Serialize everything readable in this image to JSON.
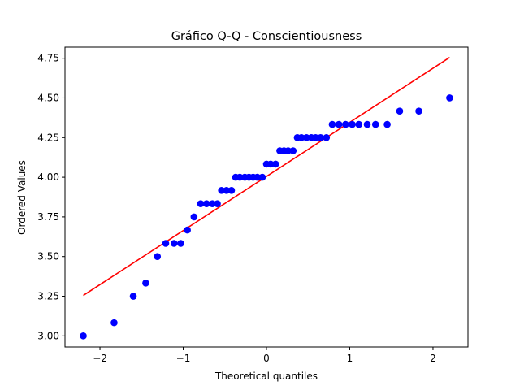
{
  "chart_data": {
    "type": "scatter",
    "title": "Gráfico Q-Q - Conscientiousness",
    "xlabel": "Theoretical quantiles",
    "ylabel": "Ordered Values",
    "xlim": [
      -2.42,
      2.42
    ],
    "ylim": [
      2.93,
      4.82
    ],
    "xticks": [
      -2,
      -1,
      0,
      1,
      2
    ],
    "xtick_labels": [
      "−2",
      "−1",
      "0",
      "1",
      "2"
    ],
    "yticks": [
      3.0,
      3.25,
      3.5,
      3.75,
      4.0,
      4.25,
      4.5,
      4.75
    ],
    "ytick_labels": [
      "3.00",
      "3.25",
      "3.50",
      "3.75",
      "4.00",
      "4.25",
      "4.50",
      "4.75"
    ],
    "grid": false,
    "series": [
      {
        "kind": "points",
        "color": "#0000ff",
        "x": [
          -2.2,
          -1.83,
          -1.6,
          -1.45,
          -1.31,
          -1.21,
          -1.11,
          -1.03,
          -0.95,
          -0.87,
          -0.79,
          -0.72,
          -0.65,
          -0.59,
          -0.54,
          -0.48,
          -0.42,
          -0.37,
          -0.32,
          -0.26,
          -0.21,
          -0.16,
          -0.11,
          -0.05,
          0.0,
          0.05,
          0.11,
          0.16,
          0.21,
          0.26,
          0.32,
          0.37,
          0.42,
          0.48,
          0.54,
          0.59,
          0.65,
          0.72,
          0.79,
          0.87,
          0.95,
          1.03,
          1.11,
          1.21,
          1.31,
          1.45,
          1.6,
          1.83,
          2.2
        ],
        "y": [
          3.0,
          3.083,
          3.25,
          3.333,
          3.5,
          3.583,
          3.583,
          3.583,
          3.667,
          3.75,
          3.833,
          3.833,
          3.833,
          3.833,
          3.917,
          3.917,
          3.917,
          4.0,
          4.0,
          4.0,
          4.0,
          4.0,
          4.0,
          4.0,
          4.083,
          4.083,
          4.083,
          4.167,
          4.167,
          4.167,
          4.167,
          4.25,
          4.25,
          4.25,
          4.25,
          4.25,
          4.25,
          4.25,
          4.333,
          4.333,
          4.333,
          4.333,
          4.333,
          4.333,
          4.333,
          4.333,
          4.417,
          4.417,
          4.5
        ]
      },
      {
        "kind": "fit-line",
        "color": "#ff0000",
        "x": [
          -2.2,
          2.2
        ],
        "y": [
          3.255,
          4.755
        ]
      }
    ]
  }
}
